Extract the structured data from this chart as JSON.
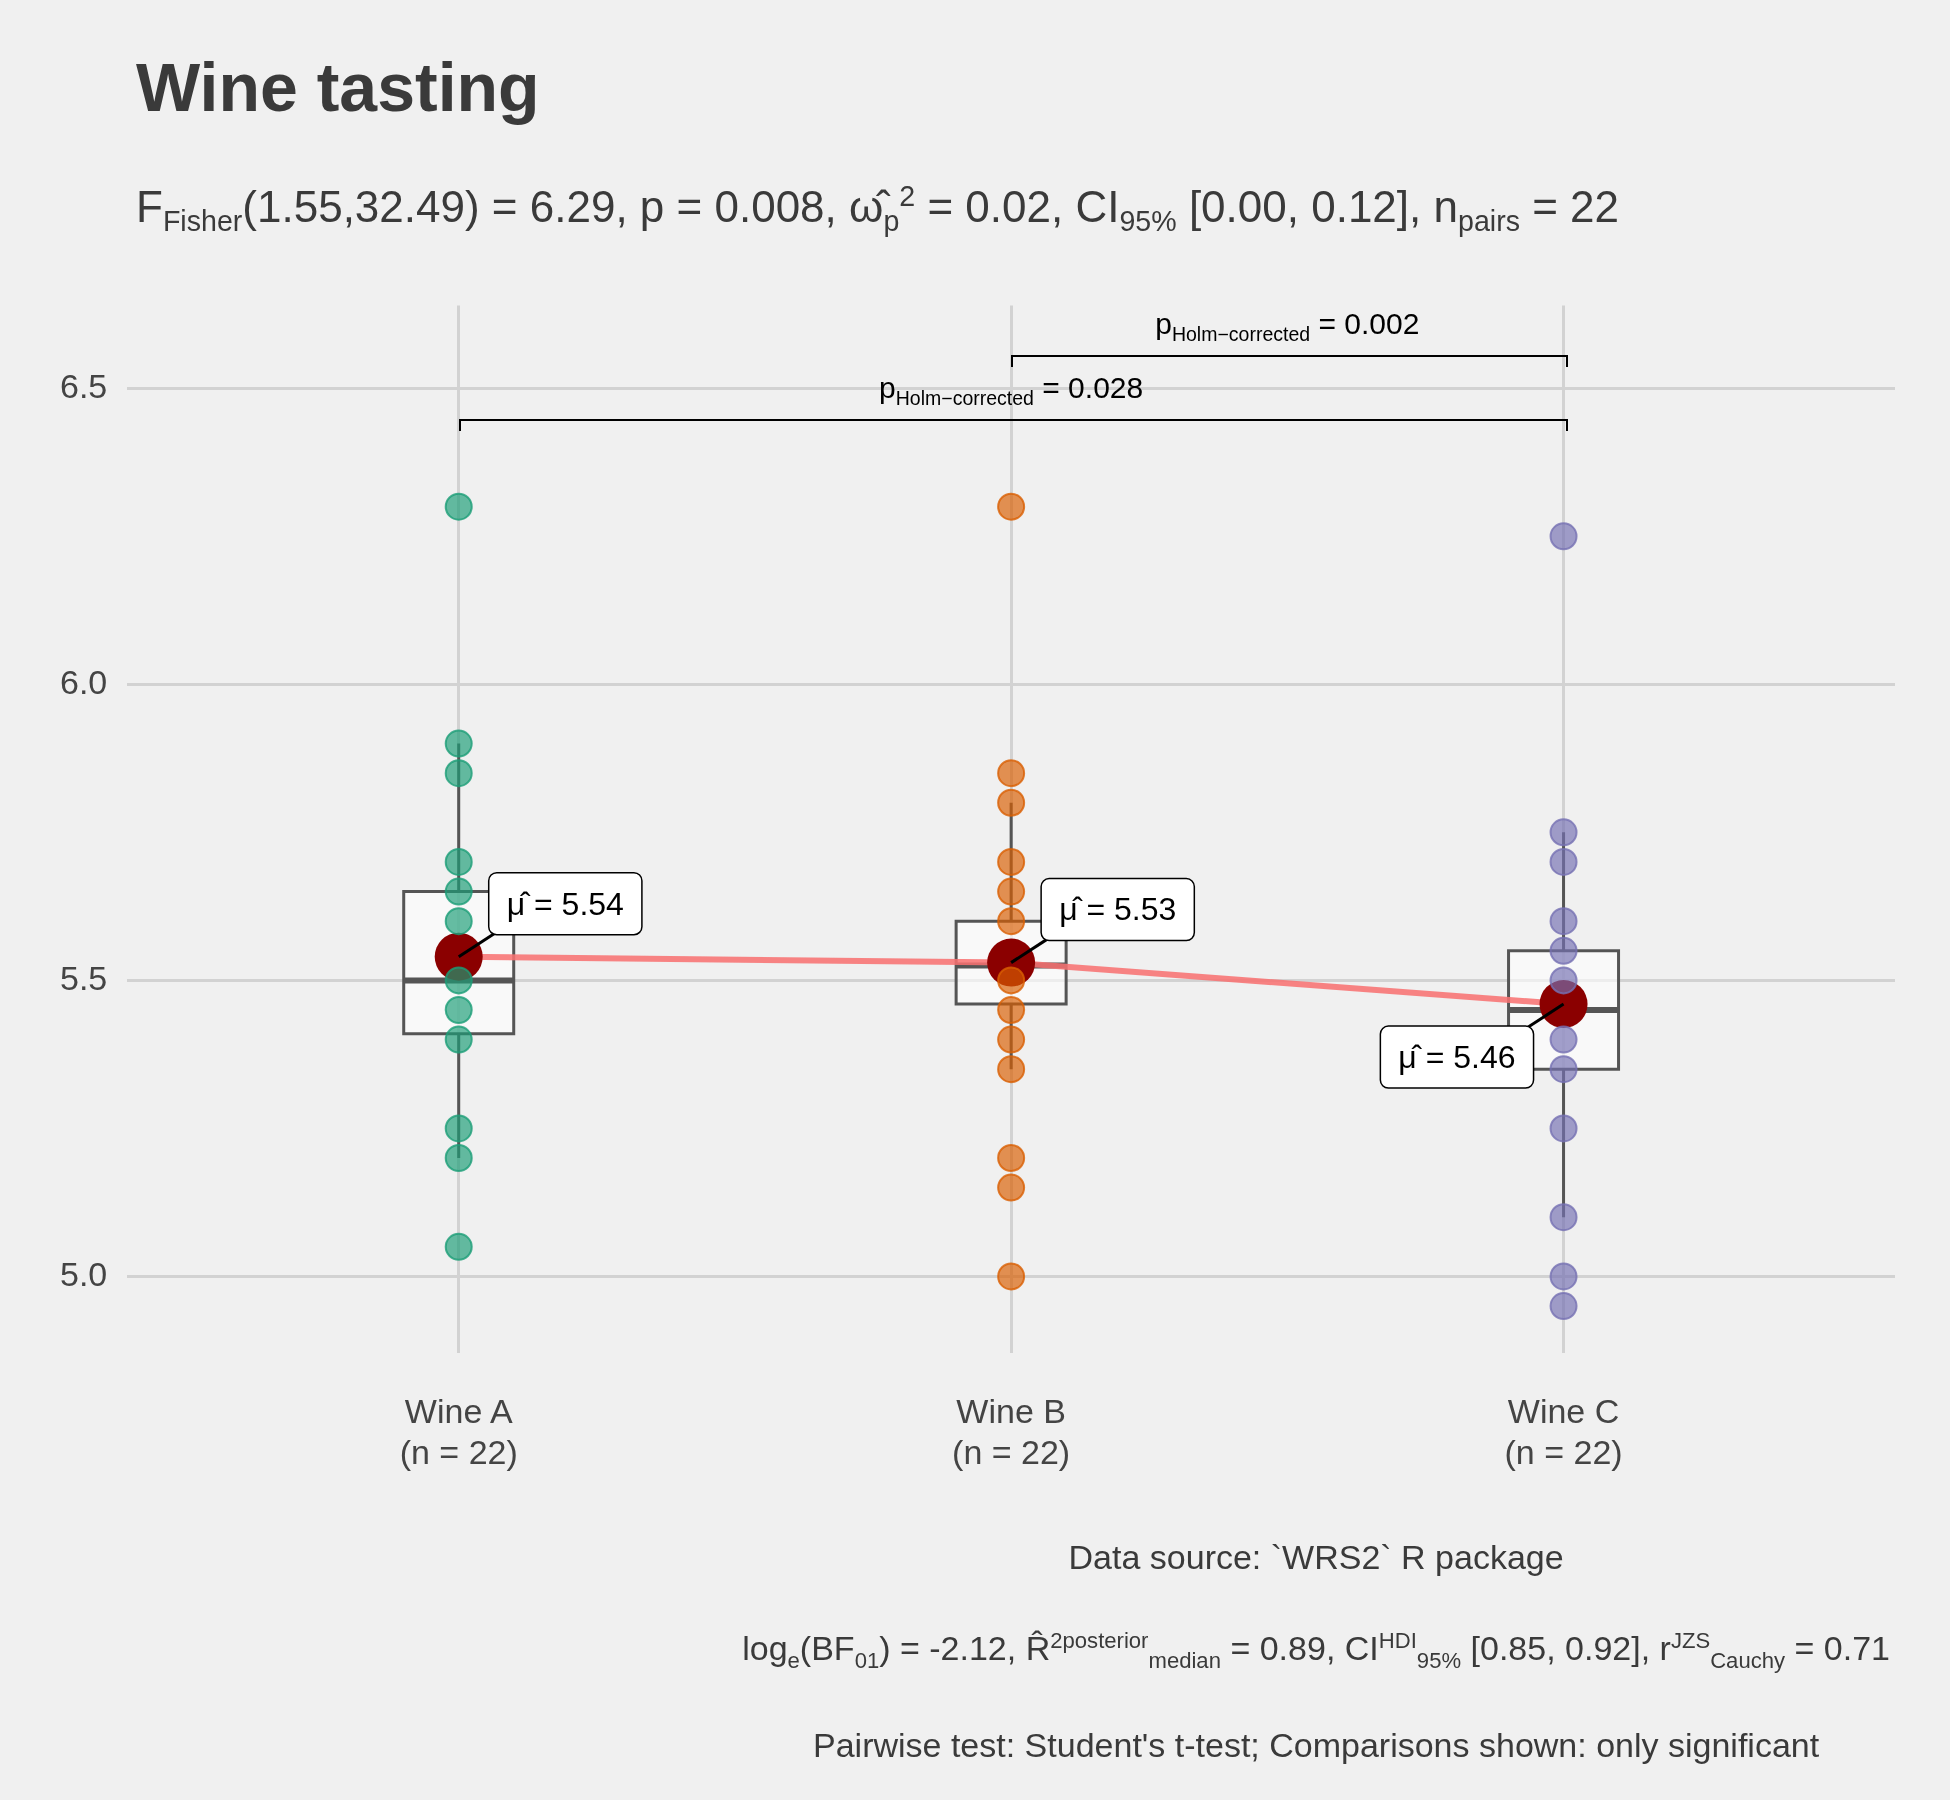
{
  "chart_data": {
    "type": "box",
    "title": "Wine tasting",
    "subtitle": "F$_{Fisher}$(1.55,32.49) = 6.29, p = 0.008, ω̂$_{p}$$^{2}$ = 0.02, CI$_{95%}$ [0.00, 0.12], n$_{pairs}$ = 22",
    "categories": [
      "Wine A\n(n = 22)",
      "Wine B\n(n = 22)",
      "Wine C\n(n = 22)"
    ],
    "boxes": [
      {
        "low": 5.2,
        "q1": 5.41,
        "median": 5.5,
        "q3": 5.65,
        "high": 5.9
      },
      {
        "low": 5.35,
        "q1": 5.46,
        "median": 5.525,
        "q3": 5.6,
        "high": 5.8
      },
      {
        "low": 5.1,
        "q1": 5.35,
        "median": 5.45,
        "q3": 5.55,
        "high": 5.75
      }
    ],
    "series": [
      {
        "type": "scatter",
        "color": "#1b9e77",
        "x": [
          "Wine A\n(n = 22)",
          "Wine A\n(n = 22)",
          "Wine A\n(n = 22)",
          "Wine A\n(n = 22)",
          "Wine A\n(n = 22)",
          "Wine A\n(n = 22)",
          "Wine A\n(n = 22)",
          "Wine A\n(n = 22)",
          "Wine A\n(n = 22)",
          "Wine A\n(n = 22)",
          "Wine A\n(n = 22)",
          "Wine A\n(n = 22)"
        ],
        "values": [
          6.3,
          5.9,
          5.85,
          5.7,
          5.65,
          5.6,
          5.5,
          5.45,
          5.4,
          5.25,
          5.2,
          5.05
        ]
      },
      {
        "type": "scatter",
        "color": "#d95f02",
        "x": [
          "Wine B\n(n = 22)",
          "Wine B\n(n = 22)",
          "Wine B\n(n = 22)",
          "Wine B\n(n = 22)",
          "Wine B\n(n = 22)",
          "Wine B\n(n = 22)",
          "Wine B\n(n = 22)",
          "Wine B\n(n = 22)",
          "Wine B\n(n = 22)",
          "Wine B\n(n = 22)",
          "Wine B\n(n = 22)",
          "Wine B\n(n = 22)",
          "Wine B\n(n = 22)"
        ],
        "values": [
          6.3,
          5.85,
          5.8,
          5.7,
          5.65,
          5.6,
          5.5,
          5.45,
          5.4,
          5.35,
          5.2,
          5.15,
          5.0
        ]
      },
      {
        "type": "scatter",
        "color": "#7570b3",
        "x": [
          "Wine C\n(n = 22)",
          "Wine C\n(n = 22)",
          "Wine C\n(n = 22)",
          "Wine C\n(n = 22)",
          "Wine C\n(n = 22)",
          "Wine C\n(n = 22)",
          "Wine C\n(n = 22)",
          "Wine C\n(n = 22)",
          "Wine C\n(n = 22)",
          "Wine C\n(n = 22)",
          "Wine C\n(n = 22)",
          "Wine C\n(n = 22)"
        ],
        "values": [
          6.25,
          5.75,
          5.7,
          5.6,
          5.55,
          5.5,
          5.4,
          5.35,
          5.25,
          5.1,
          5.0,
          4.95
        ]
      },
      {
        "type": "line",
        "color": "#f87171",
        "marker": "circle",
        "values": [
          5.54,
          5.53,
          5.46
        ]
      }
    ],
    "ylim": [
      4.87,
      6.64
    ],
    "yticks": [
      {
        "value": 5,
        "label": "5.0"
      },
      {
        "value": 5.5,
        "label": "5.5"
      },
      {
        "value": 6,
        "label": "6.0"
      },
      {
        "value": 6.5,
        "label": "6.5"
      }
    ],
    "grid": true,
    "annotations": [
      "p$_{Holm−corrected}$ = 0.002",
      "p$_{Holm−corrected}$ = 0.028",
      {
        "text": "μ̂ = 5.54",
        "x": "Wine A\n(n = 22)",
        "y": 5.54
      },
      {
        "text": "μ̂ = 5.53",
        "x": "Wine B\n(n = 22)",
        "y": 5.53
      },
      {
        "text": "μ̂ = 5.46",
        "x": "Wine C\n(n = 22)",
        "y": 5.46
      },
      "Data source: `WRS2` R package",
      "log$_{e}$(BF$_{01}$) = -2.12, R̂$^{2}$$^{posterior}$$_{median}$ = 0.89, CI$^{HDI}$$_{95%}$ [0.85, 0.92], r$^{JZS}$$_{Cauchy}$ = 0.71",
      "Pairwise test: Student's t-test; Comparisons shown: only significant"
    ]
  }
}
